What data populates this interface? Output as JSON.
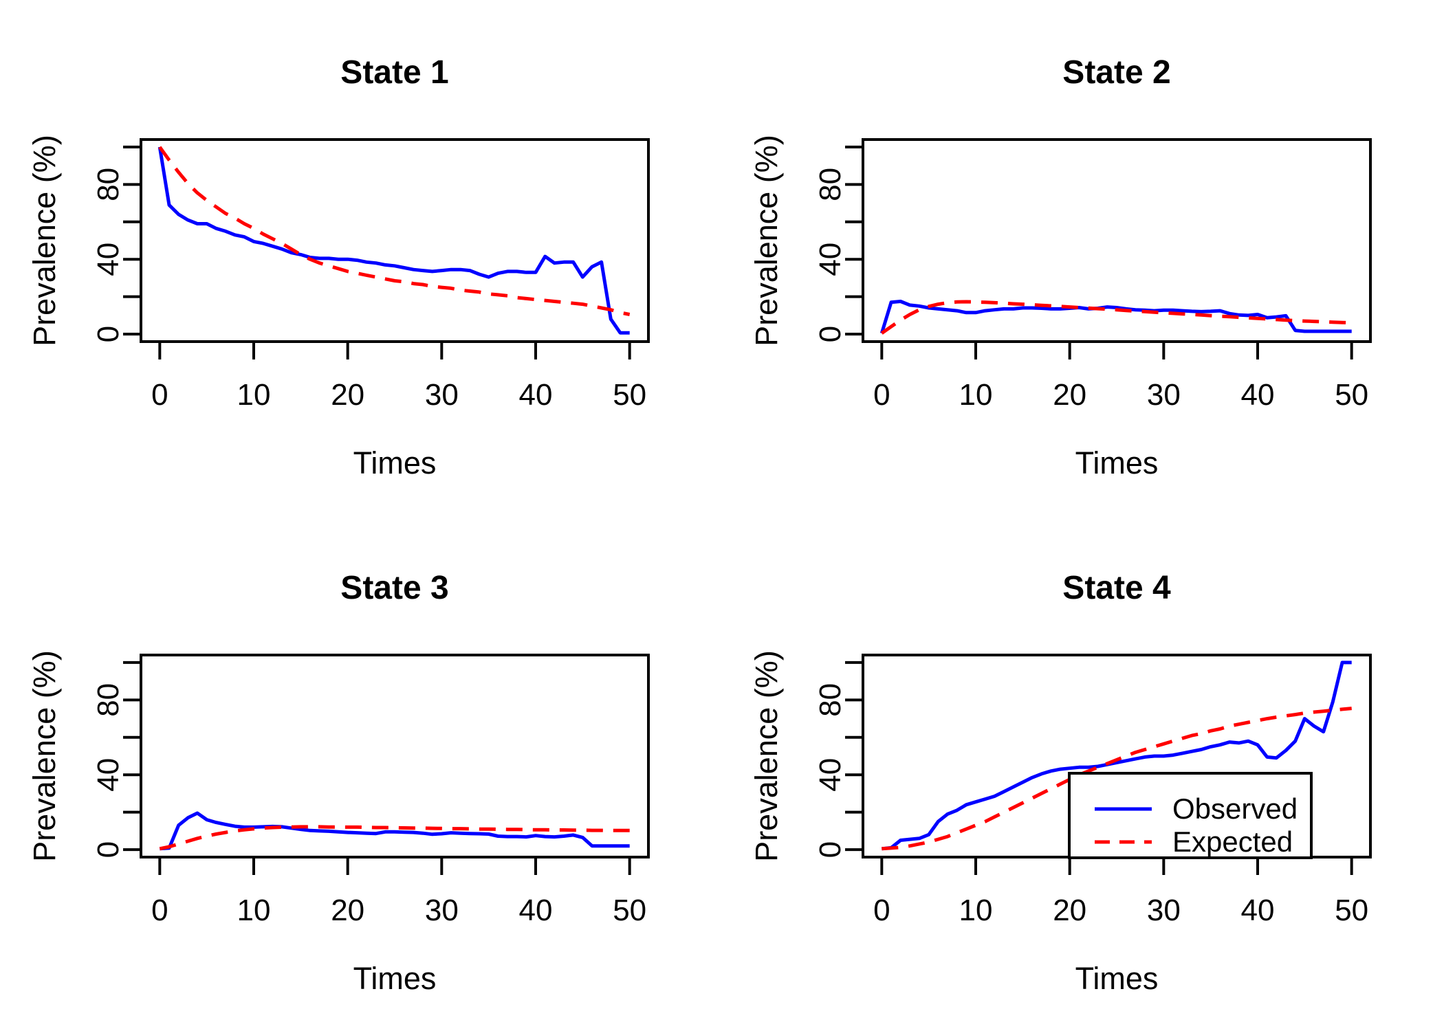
{
  "figure": {
    "background": "#ffffff",
    "axis_color": "#000000",
    "observed_color": "#0000ff",
    "expected_color": "#ff0000"
  },
  "chart_data": [
    {
      "type": "line",
      "title": "State 1",
      "xlabel": "Times",
      "ylabel": "Prevalence (%)",
      "xlim": [
        0,
        50
      ],
      "ylim": [
        0,
        100
      ],
      "grid": "off",
      "x_ticks": [
        0,
        10,
        20,
        30,
        40,
        50
      ],
      "y_ticks": [
        0,
        20,
        40,
        60,
        80,
        100
      ],
      "y_tick_labels": [
        0,
        40,
        80
      ],
      "x_start": 0,
      "x_step": 1,
      "series": [
        {
          "name": "Observed",
          "color": "#0000ff",
          "line_style": "solid",
          "values": [
            100,
            69,
            64,
            61,
            59,
            59,
            56.5,
            55,
            53,
            52,
            49.5,
            48.5,
            47,
            45.5,
            43.5,
            42.5,
            41,
            40.5,
            40.5,
            40,
            40,
            39.5,
            38.5,
            38,
            37,
            36.5,
            35.5,
            34.5,
            34,
            33.5,
            34,
            34.5,
            34.5,
            34,
            32,
            30.5,
            32.5,
            33.5,
            33.5,
            33,
            33,
            41.5,
            38,
            38.5,
            38.5,
            30.5,
            36,
            38.5,
            8,
            0.7,
            0.7
          ]
        },
        {
          "name": "Expected",
          "color": "#ff0000",
          "line_style": "dashed",
          "values": [
            100,
            93,
            86.5,
            80.5,
            75.5,
            71.5,
            68,
            64.5,
            62,
            59,
            56.5,
            53.5,
            51,
            48.5,
            45.5,
            42.5,
            40,
            38,
            36.5,
            35,
            33.5,
            32.5,
            31.5,
            30.5,
            29.5,
            28.5,
            28,
            27,
            26.5,
            25.5,
            25,
            24.5,
            23.5,
            23,
            22.5,
            21.5,
            21,
            20.5,
            19.5,
            19,
            18.5,
            18,
            17.5,
            17,
            16.5,
            16,
            15,
            14,
            13,
            11.5,
            10.5
          ]
        }
      ]
    },
    {
      "type": "line",
      "title": "State 2",
      "xlabel": "Times",
      "ylabel": "Prevalence (%)",
      "xlim": [
        0,
        50
      ],
      "ylim": [
        0,
        100
      ],
      "grid": "off",
      "x_ticks": [
        0,
        10,
        20,
        30,
        40,
        50
      ],
      "y_ticks": [
        0,
        20,
        40,
        60,
        80,
        100
      ],
      "y_tick_labels": [
        0,
        40,
        80
      ],
      "x_start": 0,
      "x_step": 1,
      "series": [
        {
          "name": "Observed",
          "color": "#0000ff",
          "line_style": "solid",
          "values": [
            0.5,
            17,
            17.5,
            15.5,
            15,
            14,
            13.5,
            13,
            12.5,
            11.5,
            11.5,
            12.5,
            13,
            13.5,
            13.5,
            14,
            14,
            13.8,
            13.5,
            13.5,
            13.8,
            14.2,
            13.5,
            13.8,
            14.5,
            14.2,
            13.5,
            13,
            12.8,
            12.5,
            12.8,
            12.8,
            12.5,
            12.2,
            12,
            12.2,
            12.5,
            11,
            10.2,
            10,
            10.5,
            8.8,
            9.2,
            9.8,
            2,
            1.5,
            1.5,
            1.5,
            1.5,
            1.5,
            1.5
          ]
        },
        {
          "name": "Expected",
          "color": "#ff0000",
          "line_style": "dashed",
          "values": [
            0.5,
            4,
            7.5,
            10.5,
            13,
            14.8,
            16,
            16.8,
            17.2,
            17.3,
            17.2,
            17,
            16.8,
            16.5,
            16.2,
            16,
            15.7,
            15.4,
            15.1,
            14.8,
            14.5,
            14.2,
            13.9,
            13.6,
            13.3,
            13,
            12.6,
            12.3,
            12,
            11.7,
            11.4,
            11.1,
            10.8,
            10.5,
            10.2,
            9.9,
            9.6,
            9.3,
            9,
            8.7,
            8.4,
            8.1,
            7.8,
            7.5,
            7.2,
            7,
            6.8,
            6.6,
            6.4,
            6.2,
            6
          ]
        }
      ]
    },
    {
      "type": "line",
      "title": "State 3",
      "xlabel": "Times",
      "ylabel": "Prevalence (%)",
      "xlim": [
        0,
        50
      ],
      "ylim": [
        0,
        100
      ],
      "grid": "off",
      "x_ticks": [
        0,
        10,
        20,
        30,
        40,
        50
      ],
      "y_ticks": [
        0,
        20,
        40,
        60,
        80,
        100
      ],
      "y_tick_labels": [
        0,
        40,
        80
      ],
      "x_start": 0,
      "x_step": 1,
      "series": [
        {
          "name": "Observed",
          "color": "#0000ff",
          "line_style": "solid",
          "values": [
            0.5,
            0.8,
            13,
            17,
            19.5,
            16,
            14.5,
            13.5,
            12.5,
            12,
            12,
            12.2,
            12.4,
            12.2,
            11.5,
            10.8,
            10.2,
            10,
            9.8,
            9.5,
            9.2,
            9,
            8.8,
            8.6,
            9.5,
            9.5,
            9.3,
            9.2,
            8.8,
            8.2,
            8.5,
            9,
            8.8,
            8.6,
            8.5,
            8.3,
            7.2,
            7,
            7,
            6.8,
            7.5,
            7,
            6.8,
            7.2,
            7.8,
            6.5,
            2,
            2,
            2,
            2,
            2
          ]
        },
        {
          "name": "Expected",
          "color": "#ff0000",
          "line_style": "dashed",
          "values": [
            0.5,
            1.5,
            3,
            4.5,
            6,
            7.2,
            8.3,
            9.2,
            10,
            10.6,
            11.1,
            11.5,
            11.8,
            12,
            12.1,
            12.2,
            12.2,
            12.2,
            12.1,
            12.1,
            12,
            12,
            11.9,
            11.8,
            11.8,
            11.7,
            11.6,
            11.5,
            11.5,
            11.4,
            11.3,
            11.2,
            11.2,
            11.1,
            11,
            11,
            10.9,
            10.8,
            10.8,
            10.7,
            10.6,
            10.6,
            10.5,
            10.5,
            10.4,
            10.4,
            10.3,
            10.3,
            10.2,
            10.2,
            10.2
          ]
        }
      ]
    },
    {
      "type": "line",
      "title": "State 4",
      "xlabel": "Times",
      "ylabel": "Prevalence (%)",
      "xlim": [
        0,
        50
      ],
      "ylim": [
        0,
        100
      ],
      "grid": "off",
      "x_ticks": [
        0,
        10,
        20,
        30,
        40,
        50
      ],
      "y_ticks": [
        0,
        20,
        40,
        60,
        80,
        100
      ],
      "y_tick_labels": [
        0,
        40,
        80
      ],
      "x_start": 0,
      "x_step": 1,
      "series": [
        {
          "name": "Observed",
          "color": "#0000ff",
          "line_style": "solid",
          "values": [
            0.5,
            1,
            5,
            5.5,
            6,
            8,
            15,
            19,
            21,
            24,
            25.5,
            27,
            28.5,
            31,
            33.5,
            36,
            38.5,
            40.5,
            42,
            43,
            43.5,
            44,
            44,
            44.5,
            45.5,
            46.5,
            47.5,
            48.5,
            49.5,
            50,
            50,
            50.5,
            51.5,
            52.5,
            53.5,
            55,
            56,
            57.5,
            57,
            58,
            56,
            49.5,
            49,
            53,
            58,
            70,
            66,
            63,
            79,
            100,
            100
          ]
        },
        {
          "name": "Expected",
          "color": "#ff0000",
          "line_style": "dashed",
          "values": [
            0.5,
            0.8,
            1.2,
            2,
            3,
            4,
            5.5,
            7,
            9,
            11,
            13,
            15,
            17.5,
            20,
            22.5,
            25,
            27.5,
            30,
            32.5,
            35,
            37.5,
            40,
            42,
            44,
            46,
            48,
            50,
            52,
            53.5,
            55,
            56.5,
            58,
            59.5,
            61,
            62,
            63.5,
            64.5,
            66,
            67,
            68,
            69,
            70,
            70.8,
            71.5,
            72.2,
            73,
            73.5,
            74,
            74.5,
            75,
            75.5
          ]
        }
      ],
      "legend": {
        "position": "bottom-right",
        "entries": [
          {
            "label": "Observed",
            "color": "#0000ff",
            "line_style": "solid"
          },
          {
            "label": "Expected",
            "color": "#ff0000",
            "line_style": "dashed"
          }
        ]
      }
    }
  ]
}
